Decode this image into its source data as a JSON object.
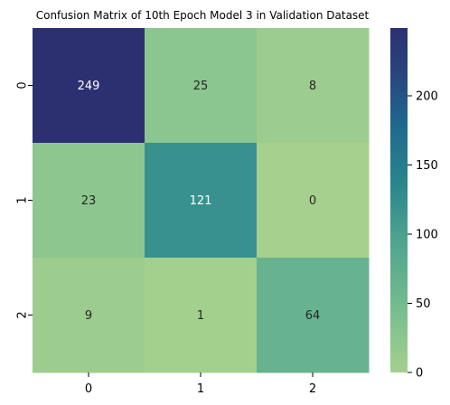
{
  "chart_data": {
    "type": "heatmap",
    "title": "Confusion Matrix of 10th Epoch Model 3 in Validation Dataset",
    "xlabel": "",
    "ylabel": "",
    "x_categories": [
      "0",
      "1",
      "2"
    ],
    "y_categories": [
      "0",
      "1",
      "2"
    ],
    "values": [
      [
        249,
        25,
        8
      ],
      [
        23,
        121,
        0
      ],
      [
        9,
        1,
        64
      ]
    ],
    "colorbar": {
      "range": [
        0,
        249
      ],
      "ticks": [
        0,
        50,
        100,
        150,
        200
      ],
      "tick_labels": [
        "0",
        "50",
        "100",
        "150",
        "200"
      ],
      "colormap": "crest",
      "color_low": "#a5d08e",
      "color_high": "#2c3071"
    },
    "annotation_colors": {
      "dark_cell": "#ffffff",
      "light_cell": "#262626"
    }
  }
}
